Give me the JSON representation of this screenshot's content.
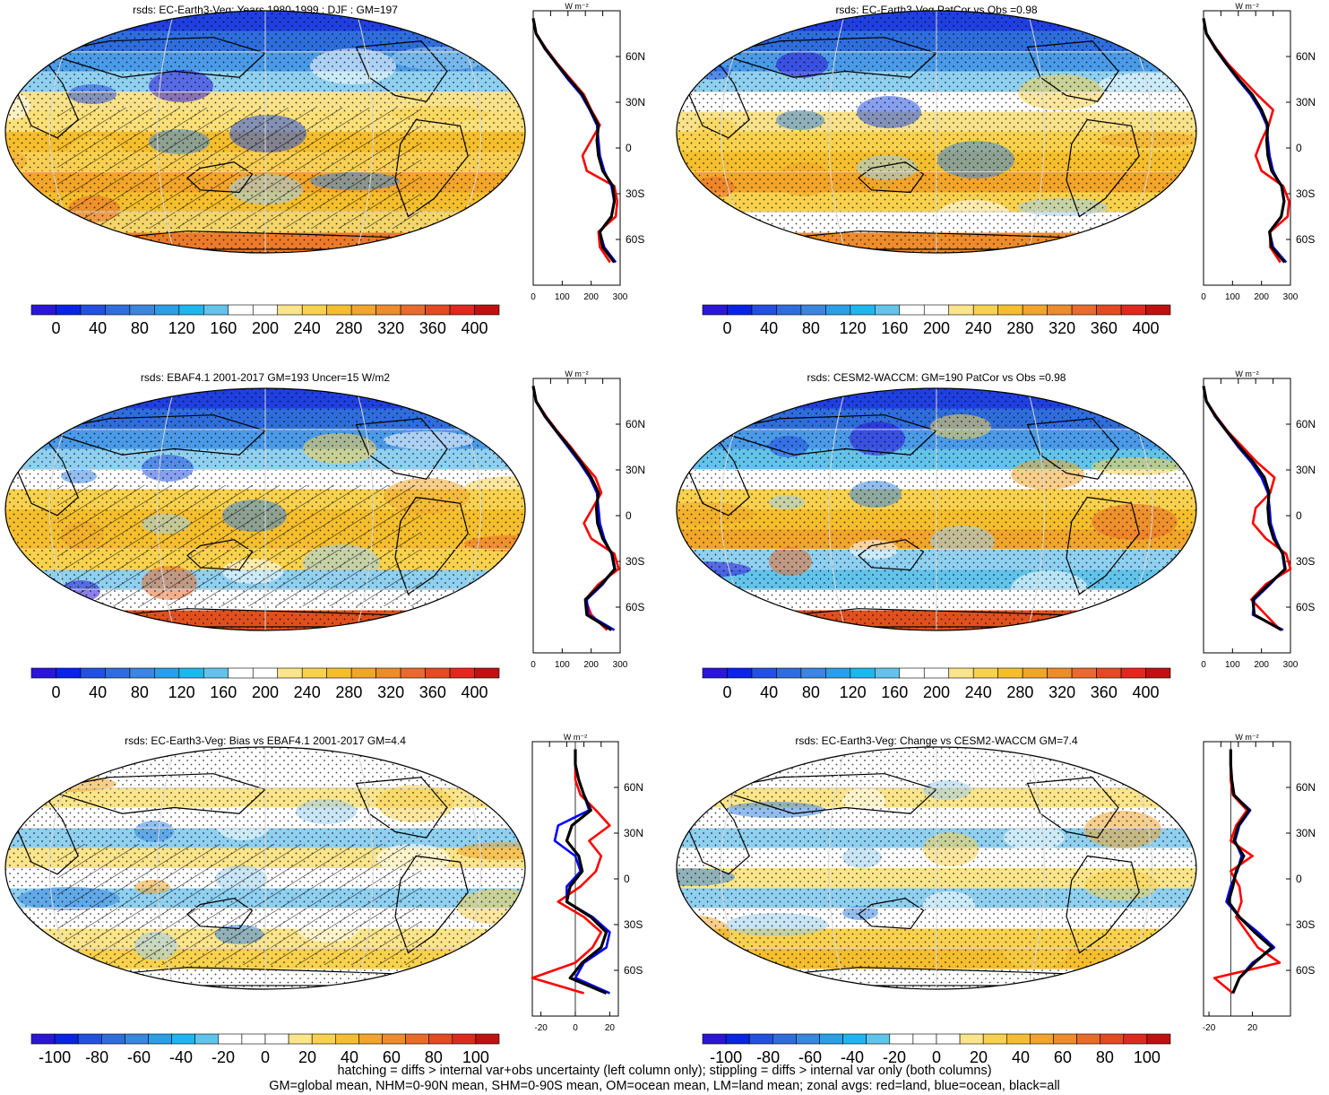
{
  "footer": {
    "line1": "hatching = diffs > internal var+obs uncertainty (left column only); stippling = diffs > internal var only (both columns)",
    "line2": "GM=global mean, NHM=0-90N mean, SHM=0-90S mean, OM=ocean mean, LM=land mean; zonal avgs: red=land, blue=ocean, black=all"
  },
  "colors": {
    "land": "#ff0000",
    "ocean": "#0000ff",
    "all": "#000000"
  },
  "abs_colorbar": {
    "colors": [
      "#2b16d8",
      "#0a24e6",
      "#2450e2",
      "#2f6ddd",
      "#3a86e0",
      "#2a9fe8",
      "#1eb6ee",
      "#63c3ea",
      "#ffffff",
      "#ffffff",
      "#fbe58a",
      "#f8d24e",
      "#f4be2e",
      "#f1a52b",
      "#ee8b2b",
      "#e96b2b",
      "#e34a24",
      "#e0281e",
      "#c01010"
    ],
    "labels": [
      "0",
      "40",
      "80",
      "120",
      "160",
      "200",
      "240",
      "280",
      "320",
      "360",
      "400"
    ]
  },
  "diff_colorbar": {
    "colors": [
      "#2b16d8",
      "#0a24e6",
      "#2450e2",
      "#2f6ddd",
      "#3a86e0",
      "#2a9fe8",
      "#1eb6ee",
      "#63c3ea",
      "#ffffff",
      "#ffffff",
      "#ffffff",
      "#fbe58a",
      "#f8d24e",
      "#f4be2e",
      "#f1a52b",
      "#ee8b2b",
      "#e96b2b",
      "#e34a24",
      "#e0281e",
      "#c01010"
    ],
    "labels": [
      "-100",
      "-80",
      "-60",
      "-40",
      "-20",
      "0",
      "20",
      "40",
      "60",
      "80",
      "100"
    ]
  },
  "zonal_lat_ticks": [
    "60N",
    "30N",
    "0",
    "30S",
    "60S"
  ],
  "chart_data": [
    {
      "type": "map",
      "title": "rsds: EC-Earth3-Veg: Years 1980-1999 : DJF : GM=197",
      "field": "abs",
      "zonal": {
        "type": "line",
        "xunit": "W m⁻²",
        "xticks": [
          "0",
          "100",
          "200",
          "300"
        ],
        "xlim": [
          0,
          300
        ],
        "lat": [
          85,
          75,
          65,
          55,
          45,
          35,
          25,
          15,
          5,
          -5,
          -15,
          -25,
          -35,
          -45,
          -55,
          -65,
          -75
        ],
        "series": [
          {
            "name": "land",
            "color": "land",
            "values": [
              0,
              10,
              45,
              85,
              130,
              175,
              200,
              230,
              200,
              170,
              185,
              280,
              290,
              285,
              225,
              230,
              265
            ]
          },
          {
            "name": "ocean",
            "color": "ocean",
            "values": [
              0,
              10,
              40,
              80,
              120,
              165,
              195,
              220,
              225,
              230,
              245,
              270,
              280,
              270,
              230,
              245,
              285
            ]
          },
          {
            "name": "all",
            "color": "all",
            "values": [
              0,
              10,
              42,
              82,
              125,
              170,
              197,
              225,
              220,
              225,
              240,
              275,
              280,
              270,
              230,
              240,
              280
            ]
          }
        ]
      }
    },
    {
      "type": "map",
      "title": "rsds: EC-Earth3-Veg PatCor vs Obs =0.98",
      "field": "abs",
      "zonal": {
        "type": "line",
        "xunit": "W m⁻²",
        "xticks": [
          "0",
          "100",
          "200",
          "300"
        ],
        "xlim": [
          0,
          300
        ],
        "lat": [
          85,
          75,
          65,
          55,
          45,
          35,
          25,
          15,
          5,
          -5,
          -15,
          -25,
          -35,
          -45,
          -55,
          -65,
          -75
        ],
        "series": [
          {
            "name": "land",
            "color": "land",
            "values": [
              0,
              10,
              45,
              85,
              135,
              185,
              240,
              225,
              200,
              180,
              200,
              275,
              295,
              290,
              230,
              230,
              265
            ]
          },
          {
            "name": "ocean",
            "color": "ocean",
            "values": [
              0,
              10,
              40,
              78,
              118,
              162,
              195,
              218,
              222,
              228,
              240,
              268,
              278,
              268,
              228,
              240,
              285
            ]
          },
          {
            "name": "all",
            "color": "all",
            "values": [
              0,
              10,
              42,
              80,
              122,
              168,
              200,
              222,
              218,
              222,
              235,
              270,
              278,
              268,
              228,
              235,
              280
            ]
          }
        ]
      }
    },
    {
      "type": "map",
      "title": "rsds: EBAF4.1 2001-2017 GM=193 Uncer=15 W/m2",
      "field": "abs",
      "zonal": {
        "type": "line",
        "xunit": "W m⁻²",
        "xticks": [
          "0",
          "100",
          "200",
          "300"
        ],
        "xlim": [
          0,
          300
        ],
        "lat": [
          85,
          75,
          65,
          55,
          45,
          35,
          25,
          15,
          5,
          -5,
          -15,
          -25,
          -35,
          -45,
          -55,
          -65,
          -75
        ],
        "series": [
          {
            "name": "land",
            "color": "land",
            "values": [
              0,
              10,
              45,
              85,
              130,
              170,
              215,
              235,
              205,
              175,
              200,
              280,
              295,
              225,
              180,
              200,
              255
            ]
          },
          {
            "name": "ocean",
            "color": "ocean",
            "values": [
              0,
              10,
              40,
              80,
              120,
              160,
              195,
              220,
              225,
              230,
              245,
              270,
              280,
              240,
              185,
              190,
              280
            ]
          },
          {
            "name": "all",
            "color": "all",
            "values": [
              0,
              10,
              42,
              82,
              125,
              165,
              200,
              225,
              218,
              222,
              240,
              272,
              282,
              235,
              180,
              185,
              270
            ]
          }
        ]
      }
    },
    {
      "type": "map",
      "title": "rsds: CESM2-WACCM: GM=190 PatCor vs Obs =0.98",
      "field": "abs",
      "zonal": {
        "type": "line",
        "xunit": "W m⁻²",
        "xticks": [
          "0",
          "100",
          "200",
          "300"
        ],
        "xlim": [
          0,
          300
        ],
        "lat": [
          85,
          75,
          65,
          55,
          45,
          35,
          25,
          15,
          5,
          -5,
          -15,
          -25,
          -35,
          -45,
          -55,
          -65,
          -75
        ],
        "series": [
          {
            "name": "land",
            "color": "land",
            "values": [
              0,
              10,
              45,
              85,
              135,
              185,
              245,
              230,
              180,
              170,
              215,
              285,
              300,
              215,
              165,
              215,
              265
            ]
          },
          {
            "name": "ocean",
            "color": "ocean",
            "values": [
              0,
              10,
              40,
              80,
              120,
              165,
              200,
              222,
              228,
              232,
              248,
              272,
              280,
              230,
              175,
              170,
              275
            ]
          },
          {
            "name": "all",
            "color": "all",
            "values": [
              0,
              10,
              42,
              82,
              125,
              172,
              210,
              226,
              222,
              226,
              242,
              274,
              282,
              225,
              170,
              175,
              270
            ]
          }
        ]
      }
    },
    {
      "type": "map",
      "title": "rsds: EC-Earth3-Veg: Bias vs EBAF4.1 2001-2017 GM=4.4",
      "field": "diff",
      "zonal": {
        "type": "line",
        "xunit": "W m⁻²",
        "xticks": [
          "-20",
          "0",
          "20"
        ],
        "xlim": [
          -25,
          25
        ],
        "lat": [
          85,
          75,
          65,
          55,
          45,
          35,
          25,
          15,
          5,
          -5,
          -15,
          -25,
          -35,
          -45,
          -55,
          -65,
          -75
        ],
        "series": [
          {
            "name": "land",
            "color": "land",
            "values": [
              0,
              0,
              0,
              3,
              12,
              20,
              8,
              15,
              12,
              3,
              -10,
              5,
              15,
              10,
              0,
              -25,
              5
            ]
          },
          {
            "name": "ocean",
            "color": "ocean",
            "values": [
              0,
              0,
              2,
              5,
              8,
              -10,
              -12,
              0,
              3,
              -5,
              -5,
              10,
              20,
              18,
              5,
              0,
              20
            ]
          },
          {
            "name": "all",
            "color": "all",
            "values": [
              0,
              0,
              2,
              5,
              9,
              -2,
              -5,
              2,
              4,
              -3,
              -5,
              9,
              18,
              15,
              4,
              -3,
              18
            ]
          }
        ]
      }
    },
    {
      "type": "map",
      "title": "rsds: EC-Earth3-Veg: Change vs CESM2-WACCM GM=7.4",
      "field": "diff",
      "zonal": {
        "type": "line",
        "xunit": "W m⁻²",
        "xticks": [
          "-20",
          "20"
        ],
        "xlim": [
          -25,
          55
        ],
        "lat": [
          85,
          75,
          65,
          55,
          45,
          35,
          25,
          15,
          5,
          -5,
          -15,
          -25,
          -35,
          -45,
          -55,
          -65,
          -75
        ],
        "series": [
          {
            "name": "land",
            "color": "land",
            "values": [
              0,
              0,
              0,
              2,
              15,
              5,
              0,
              20,
              0,
              8,
              10,
              5,
              15,
              25,
              45,
              -15,
              2
            ]
          },
          {
            "name": "ocean",
            "color": "ocean",
            "values": [
              0,
              0,
              1,
              3,
              18,
              8,
              4,
              10,
              6,
              0,
              -4,
              8,
              25,
              40,
              20,
              8,
              2
            ]
          },
          {
            "name": "all",
            "color": "all",
            "values": [
              0,
              0,
              1,
              3,
              17,
              7,
              3,
              12,
              5,
              2,
              -2,
              8,
              22,
              38,
              22,
              8,
              2
            ]
          }
        ]
      }
    }
  ]
}
